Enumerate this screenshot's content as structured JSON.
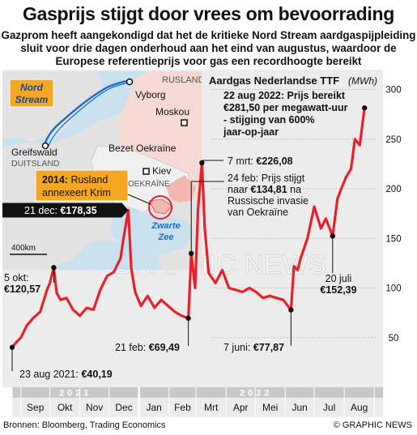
{
  "title": "Gasprijs stijgt door vrees om bevoorrading",
  "subtitle": "Gazprom heeft aangekondigd dat het de kritieke Nord Stream aardgaspijpleiding sluit voor drie dagen onderhoud aan het eind van augustus, waardoor de Europese referentieprijs voor gas een recordhoogte bereikt",
  "source": "Bronnen: Bloomberg, Trading Economics",
  "credit": "© GRAPHIC NEWS",
  "watermark": "GRAPHIC NEWS",
  "colors": {
    "line": "#e8202a",
    "map_sea": "#c9e1ee",
    "map_land": "#e2e2e2",
    "map_russia": "#f7d9d3",
    "callout": "#f5a623",
    "plot_bg": "#ececec",
    "axis_bar": "#c8c8c8"
  },
  "map": {
    "nord_stream_label": "Nord\nStream",
    "places": {
      "rusland": "RUSLAND",
      "vyborg": "Vyborg",
      "moskou": "Moskou",
      "greifswald": "Greifswald",
      "duitsland": "DUITSLAND",
      "bezet_oekraine": "Bezet Oekraïne",
      "kiev": "Kiev",
      "oekraine": "OEKRAÏNE",
      "zwarte_zee": "Zwarte\nZee"
    },
    "crimea_callout": "2014: Rusland annexeert Krim",
    "scale": "400km"
  },
  "chart_data": {
    "type": "line",
    "title": "Aardgas Nederlandse TTF",
    "unit": "(MWh)",
    "y_ticks": [
      50,
      100,
      150,
      200,
      250,
      300
    ],
    "ylim": [
      0,
      320
    ],
    "xlim": [
      "2021-08-23",
      "2022-08-31"
    ],
    "years": [
      "2021",
      "2022"
    ],
    "months": [
      "Sep",
      "Okt",
      "Nov",
      "Dec",
      "Jan",
      "Feb",
      "Mrt",
      "Apr",
      "Mei",
      "Jun",
      "Jul",
      "Aug"
    ],
    "series": [
      {
        "x": [
          "2021-08-23",
          "2021-08-27",
          "2021-09-01",
          "2021-09-07",
          "2021-09-14",
          "2021-09-21",
          "2021-09-28",
          "2021-10-01",
          "2021-10-05",
          "2021-10-08",
          "2021-10-12",
          "2021-10-18",
          "2021-10-25",
          "2021-11-01",
          "2021-11-08",
          "2021-11-15",
          "2021-11-22",
          "2021-11-29",
          "2021-12-06",
          "2021-12-13",
          "2021-12-16",
          "2021-12-21",
          "2021-12-24",
          "2021-12-28",
          "2022-01-03",
          "2022-01-10",
          "2022-01-17",
          "2022-01-24",
          "2022-01-31",
          "2022-02-07",
          "2022-02-14",
          "2022-02-21",
          "2022-02-24",
          "2022-02-28",
          "2022-03-03",
          "2022-03-07",
          "2022-03-10",
          "2022-03-14",
          "2022-03-21",
          "2022-03-28",
          "2022-04-04",
          "2022-04-11",
          "2022-04-18",
          "2022-04-25",
          "2022-05-02",
          "2022-05-09",
          "2022-05-16",
          "2022-05-23",
          "2022-05-30",
          "2022-06-07",
          "2022-06-10",
          "2022-06-14",
          "2022-06-17",
          "2022-06-24",
          "2022-07-01",
          "2022-07-08",
          "2022-07-13",
          "2022-07-20",
          "2022-07-25",
          "2022-07-29",
          "2022-08-03",
          "2022-08-08",
          "2022-08-12",
          "2022-08-17",
          "2022-08-22"
        ],
        "values": [
          40.19,
          45,
          50,
          62,
          70,
          76,
          98,
          105,
          120.57,
          95,
          88,
          90,
          78,
          72,
          80,
          78,
          98,
          112,
          116,
          130,
          150,
          178.35,
          120,
          96,
          82,
          92,
          80,
          88,
          82,
          76,
          72,
          69.49,
          134.81,
          100,
          180,
          226.08,
          160,
          115,
          105,
          118,
          100,
          98,
          96,
          100,
          96,
          90,
          92,
          90,
          88,
          77.87,
          122,
          118,
          130,
          150,
          182,
          160,
          170,
          152.39,
          190,
          200,
          212,
          220,
          250,
          244,
          281.5
        ]
      }
    ],
    "annotations": [
      {
        "x": "2021-08-23",
        "y": 40.19,
        "text_a": "23 aug 2021: ",
        "text_b": "€40,19"
      },
      {
        "x": "2021-10-05",
        "y": 120.57,
        "text_a": "5 okt:",
        "text_b": "€120,57"
      },
      {
        "x": "2021-12-21",
        "y": 178.35,
        "text_a": "21 dec: ",
        "text_b": "€178,35"
      },
      {
        "x": "2022-02-21",
        "y": 69.49,
        "text_a": "21 feb: ",
        "text_b": "€69,49"
      },
      {
        "x": "2022-02-24",
        "y": 134.81,
        "text_a": "24 feb: Prijs stijgt naar €134,81 na Russische invasie van Oekraïne",
        "text_b": ""
      },
      {
        "x": "2022-03-07",
        "y": 226.08,
        "text_a": "7 mrt: ",
        "text_b": "€226,08"
      },
      {
        "x": "2022-06-07",
        "y": 77.87,
        "text_a": "7 juni: ",
        "text_b": "€77,87"
      },
      {
        "x": "2022-07-20",
        "y": 152.39,
        "text_a": "20 juli",
        "text_b": "€152,39"
      },
      {
        "x": "2022-08-22",
        "y": 281.5,
        "text_a": "22 aug 2022: Prijs bereikt €281,50 per megawatt-uur - stijging van 600% jaar-op-jaar",
        "text_b": ""
      }
    ]
  }
}
